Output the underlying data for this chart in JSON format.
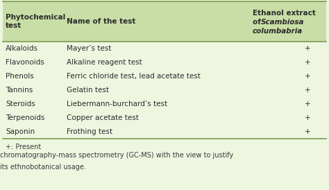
{
  "header_col1": "Phytochemical\ntest",
  "header_col2": "Name of the test",
  "header_col3_line1": "Ethanol extract",
  "header_col3_line2": "of ",
  "header_col3_italic2": "Scambiosa",
  "header_col3_line3italic": "columbabria",
  "rows": [
    [
      "Alkaloids",
      "Mayer’s test",
      "+"
    ],
    [
      "Flavonoids",
      "Alkaline reagent test",
      "+"
    ],
    [
      "Phenols",
      "Ferric chloride test, lead acetate test",
      "+"
    ],
    [
      "Tannins",
      "Gelatin test",
      "+"
    ],
    [
      "Steroids",
      "Liebermann-burchard’s test",
      "+"
    ],
    [
      "Terpenoids",
      "Copper acetate test",
      "+"
    ],
    [
      "Saponin",
      "Frothing test",
      "+"
    ]
  ],
  "footnote": "+: Present",
  "bottom_text1": "chromatography-mass spectrometry (GC-MS) with the view to justify",
  "bottom_text2": "its ethnobotanical usage.",
  "header_bg": "#c8dea6",
  "row_bg": "#eef6e0",
  "fig_bg": "#eef6e0",
  "text_color": "#2b2b2b",
  "line_color": "#7a9a50",
  "footnote_color": "#3a3a3a",
  "bottom_text_color": "#3a3a3a"
}
